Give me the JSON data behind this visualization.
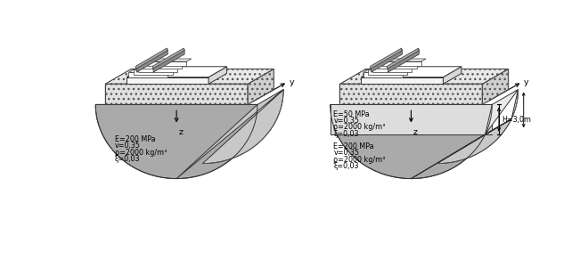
{
  "fig_width": 6.6,
  "fig_height": 2.92,
  "dpi": 100,
  "bg_color": "#ffffff",
  "soil_gray": "#aaaaaa",
  "soil_dark": "#999999",
  "soil_light": "#dddddd",
  "side_color": "#c8c8c8",
  "side_light": "#e8e8e8",
  "ballast_color": "#e0e0e0",
  "slab_white": "#f5f5f5",
  "label1": [
    "E=200 MPa",
    "v=0,35",
    "ρ=2000 kg/m³",
    "ξ=0,03"
  ],
  "label2_top": [
    "E=50 MPa",
    "v=0,35",
    "ρ=2000 kg/m³",
    "ξ=0,03"
  ],
  "label2_bot": [
    "E=200 MPa",
    "v=0,35",
    "ρ=2000 kg/m³",
    "ξ=0,03"
  ],
  "h_label": "H=3,0m",
  "lbl_y": "y",
  "lbl_z": "z",
  "fs": 5.8
}
